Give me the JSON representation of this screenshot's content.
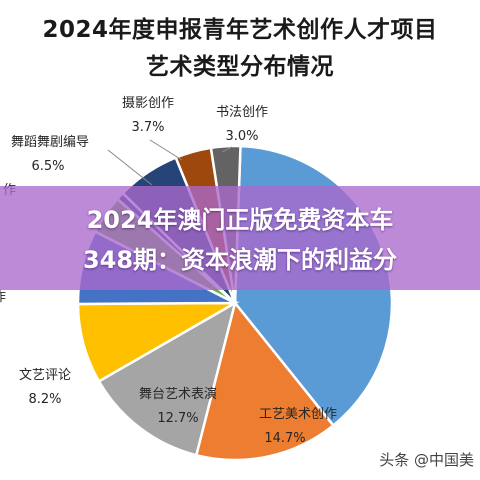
{
  "chart_data": {
    "type": "pie",
    "title": "2024年度申报青年艺术创作人才项目",
    "subtitle": "艺术类型分布情况",
    "slices": [
      {
        "label": "",
        "value_label": "",
        "value": 38.6,
        "color": "#5b9bd5"
      },
      {
        "label": "工艺美术创作",
        "value_label": "14.7%",
        "value": 14.7,
        "color": "#ed7d31"
      },
      {
        "label": "舞台艺术表演",
        "value_label": "12.7%",
        "value": 12.7,
        "color": "#a5a5a5"
      },
      {
        "label": "文艺评论",
        "value_label": "8.2%",
        "value": 8.2,
        "color": "#ffc000"
      },
      {
        "label": "作",
        "value_label": "",
        "value": 7.6,
        "color": "#4472c4"
      },
      {
        "label": "",
        "value_label": "",
        "value": 4.0,
        "color": "#70ad47"
      },
      {
        "label": "作",
        "value_label": "",
        "value": 0.8,
        "color": "#264478"
      },
      {
        "label": "舞蹈舞剧编导",
        "value_label": "6.5%",
        "value": 6.5,
        "color": "#264478"
      },
      {
        "label": "摄影创作",
        "value_label": "3.7%",
        "value": 3.7,
        "color": "#9e480e"
      },
      {
        "label": "书法创作",
        "value_label": "3.0%",
        "value": 3.0,
        "color": "#636363"
      }
    ]
  },
  "overlay": {
    "line1": "2024年澳门正版免费资本车",
    "line2": "348期：资本浪潮下的利益分"
  },
  "watermark": "头条 @中国美"
}
